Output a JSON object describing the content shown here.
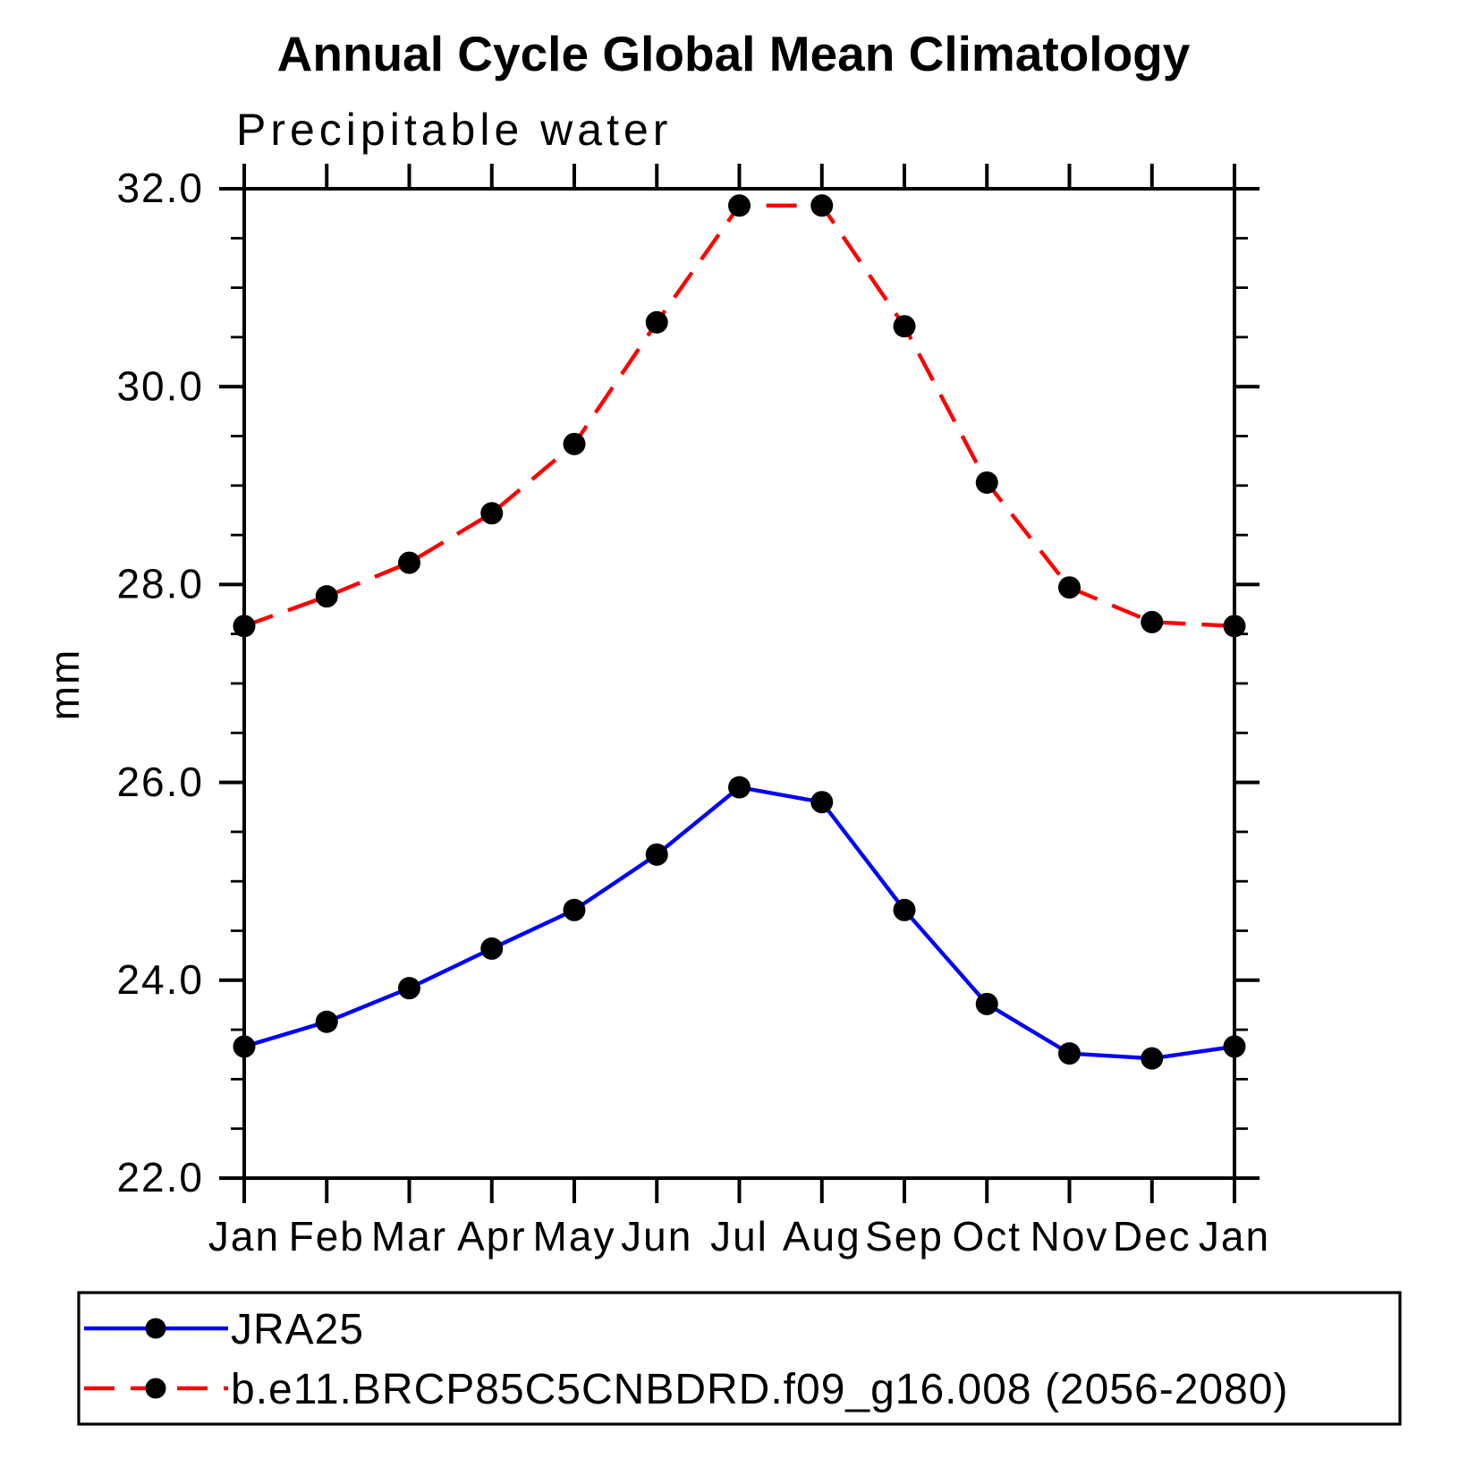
{
  "title": "Annual Cycle Global Mean Climatology",
  "subtitle": "Precipitable water",
  "chart_data": {
    "type": "line",
    "title": "Annual Cycle Global Mean Climatology",
    "subtitle": "Precipitable water",
    "ylabel": "mm",
    "xlabel": "",
    "x_labels": [
      "Jan",
      "Feb",
      "Mar",
      "Apr",
      "May",
      "Jun",
      "Jul",
      "Aug",
      "Sep",
      "Oct",
      "Nov",
      "Dec",
      "Jan"
    ],
    "ylim": [
      22.0,
      32.0
    ],
    "ytick_major_step": 2.0,
    "ytick_minor_step": 0.5,
    "ytick_labels": [
      "22.0",
      "24.0",
      "26.0",
      "28.0",
      "30.0",
      "32.0"
    ],
    "grid": false,
    "legend_position": "bottom-left-box",
    "axis_color": "#000000",
    "series": [
      {
        "name": "JRA25",
        "line_color": "#0000ff",
        "line_style": "solid",
        "marker": "circle",
        "marker_color": "#000000",
        "values": [
          23.33,
          23.58,
          23.92,
          24.32,
          24.71,
          25.27,
          25.95,
          25.8,
          24.71,
          23.76,
          23.26,
          23.21,
          23.33
        ]
      },
      {
        "name": "b.e11.BRCP85C5CNBDRD.f09_g16.008 (2056-2080)",
        "line_color": "#ff0000",
        "line_style": "dashed",
        "marker": "circle",
        "marker_color": "#000000",
        "values": [
          27.58,
          27.88,
          28.22,
          28.72,
          29.42,
          30.65,
          31.83,
          31.83,
          30.61,
          29.03,
          27.97,
          27.62,
          27.58
        ]
      }
    ]
  }
}
